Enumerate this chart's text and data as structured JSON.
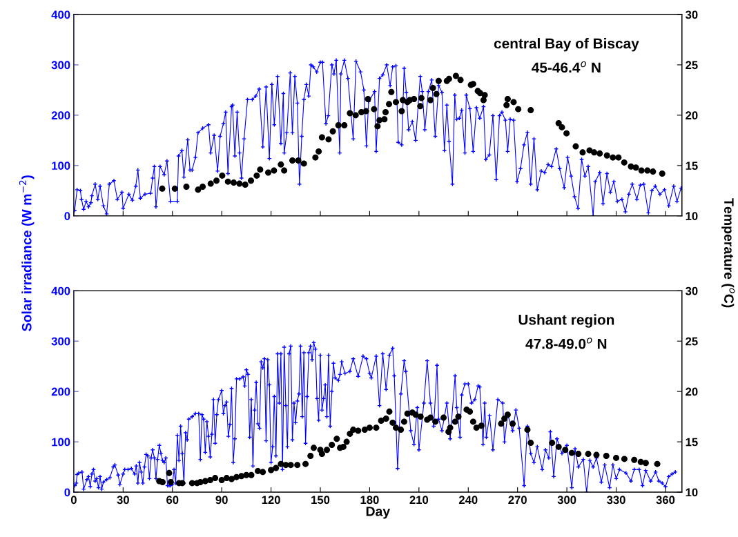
{
  "chart_data": [
    {
      "type": "line",
      "tick_labels": "y",
      "ylabel": "Solar irradiance (W m$^{−2}$)",
      "y2label": "Temperature ($^{o}$C)",
      "annotations": [
        "central Bay of Biscay",
        "45-46.4$^{o}$ N"
      ],
      "xlim": [
        0,
        370
      ],
      "xticks": [
        0,
        30,
        60,
        90,
        120,
        150,
        180,
        210,
        240,
        270,
        300,
        330,
        360
      ],
      "ylim": [
        0,
        400
      ],
      "yticks": [
        0,
        100,
        200,
        300,
        400
      ],
      "y2lim": [
        10,
        30
      ],
      "y2ticks": [
        10,
        15,
        20,
        25,
        30
      ],
      "series": [
        {
          "color": "#0000ff",
          "marker": "cross",
          "x": [
            0.5,
            2,
            4,
            4.7,
            6,
            7.5,
            9,
            10.4,
            11,
            13,
            14.6,
            16,
            18,
            20,
            21.6,
            24.4,
            26.5,
            29.3,
            30,
            33.5,
            35.6,
            37.7,
            39,
            40.5,
            43.3,
            46.8,
            48,
            49,
            50,
            52.5,
            55,
            56.7,
            58.8,
            63,
            63.7,
            65.8,
            67,
            69.3,
            70.7,
            72,
            74,
            75.6,
            78.4,
            82,
            83.3,
            85.4,
            87.5,
            89,
            91,
            92.4,
            93.8,
            96,
            96.6,
            98,
            99.4,
            100.8,
            102,
            103.6,
            105.7,
            108.6,
            110.7,
            112.8,
            115,
            117,
            119,
            120.5,
            122,
            124,
            126,
            127.5,
            128,
            129.6,
            131.7,
            133,
            134.5,
            136,
            137.3,
            138.7,
            140,
            141.5,
            143,
            144.3,
            145.7,
            147.8,
            150,
            151.3,
            153.4,
            154.8,
            157,
            158.3,
            159.7,
            161.8,
            162.5,
            164.6,
            166.8,
            170,
            171.7,
            174.5,
            176.5,
            178,
            179.4,
            183,
            184,
            186,
            188,
            190.4,
            192.5,
            194,
            196,
            197.4,
            199.5,
            201,
            202.3,
            203.7,
            206,
            208,
            210.8,
            212,
            213.6,
            215.7,
            217.8,
            219.9,
            222,
            224,
            225.5,
            227,
            228.3,
            230.4,
            231.8,
            233,
            234.6,
            236,
            238,
            238.8,
            241,
            243,
            245,
            247,
            249.3,
            250.7,
            252.8,
            255,
            257,
            259,
            260.5,
            262.6,
            264,
            265.5,
            267.6,
            269.7,
            271.8,
            273.9,
            276,
            278,
            280,
            282,
            284.4,
            286.5,
            288.6,
            290.7,
            293.5,
            295.6,
            298.4,
            300.5,
            302.6,
            304.7,
            306.8,
            309,
            311,
            313,
            316,
            317.3,
            320,
            322,
            324.4,
            326.5,
            328.6,
            330.7,
            333.5,
            335.6,
            337.7,
            339.8,
            342.6,
            344.7,
            346.8,
            349.6,
            351.7,
            353.8,
            356.6,
            359.4,
            362,
            365,
            367,
            369.5
          ],
          "values": [
            11,
            52,
            50,
            33,
            13,
            29,
            18,
            26,
            40,
            63,
            33,
            59,
            20,
            4,
            63,
            70,
            33,
            47,
            15,
            43,
            31,
            59,
            91,
            35,
            43,
            45,
            75,
            98,
            18,
            98,
            82,
            109,
            29,
            29,
            119,
            130,
            77,
            151,
            91,
            91,
            116,
            165,
            174,
            181,
            125,
            160,
            89,
            158,
            183,
            206,
            84,
            217,
            220,
            119,
            206,
            125,
            75,
            153,
            231,
            231,
            238,
            252,
            137,
            256,
            114,
            261,
            181,
            277,
            144,
            243,
            125,
            165,
            284,
            165,
            277,
            224,
            63,
            158,
            231,
            261,
            238,
            300,
            296,
            286,
            305,
            305,
            183,
            199,
            300,
            282,
            309,
            125,
            282,
            309,
            273,
            153,
            307,
            286,
            250,
            139,
            227,
            247,
            128,
            273,
            280,
            300,
            259,
            296,
            298,
            146,
            141,
            293,
            245,
            171,
            187,
            150,
            277,
            247,
            171,
            247,
            270,
            158,
            259,
            245,
            130,
            220,
            148,
            63,
            240,
            192,
            194,
            210,
            125,
            240,
            213,
            128,
            215,
            194,
            217,
            112,
            121,
            199,
            72,
            199,
            206,
            190,
            128,
            192,
            190,
            68,
            94,
            141,
            166,
            63,
            153,
            52,
            89,
            86,
            102,
            98,
            133,
            94,
            56,
            116,
            79,
            38,
            15,
            112,
            79,
            98,
            0,
            68,
            86,
            24,
            84,
            47,
            68,
            29,
            33,
            8,
            43,
            63,
            33,
            61,
            63,
            6,
            50,
            59,
            43,
            52,
            20,
            59,
            29,
            55
          ]
        },
        {
          "type": "scatter",
          "axis": "y2",
          "color": "#000000",
          "marker": "circle",
          "x": [
            53.8,
            61.5,
            68.5,
            75.6,
            78.4,
            83.3,
            86.8,
            90.3,
            93.8,
            97.3,
            100.8,
            104.3,
            107.8,
            111.3,
            113.4,
            118.3,
            121.8,
            126,
            128,
            133,
            136.6,
            140,
            147,
            149,
            151,
            155,
            157.6,
            161,
            164.6,
            168,
            171.5,
            175,
            177.8,
            179,
            182.7,
            184.8,
            186,
            189,
            189.7,
            191.8,
            193.2,
            196,
            199.5,
            200.2,
            203,
            204.4,
            207,
            210.8,
            211.5,
            217,
            218.5,
            220.6,
            222,
            227,
            228.3,
            232.5,
            235.3,
            241.6,
            243,
            245.8,
            247.2,
            249.3,
            250,
            263.3,
            264,
            267.6,
            270.4,
            278,
            295,
            297,
            299.8,
            305.4,
            309.6,
            313.8,
            316.6,
            320,
            324.4,
            328,
            331.4,
            334.9,
            339,
            342,
            345.4,
            349,
            352.4,
            358
          ],
          "values": [
            12.7,
            12.7,
            12.9,
            12.6,
            12.9,
            13.2,
            13.5,
            14.0,
            13.4,
            13.3,
            13.2,
            13.1,
            13.5,
            14.0,
            14.6,
            14.3,
            14.5,
            15.1,
            14.5,
            15.5,
            15.5,
            15.2,
            15.8,
            16.4,
            17.8,
            17.6,
            18.4,
            19.0,
            19.0,
            20.2,
            20.0,
            20.3,
            20.4,
            21.6,
            20.6,
            18.9,
            19.5,
            19.6,
            20.3,
            21.1,
            22.3,
            21.3,
            20.4,
            21.5,
            21.3,
            21.5,
            21.6,
            20.9,
            21.7,
            21.5,
            22.7,
            22.1,
            23.4,
            23.4,
            23.6,
            23.9,
            23.5,
            23.0,
            23.1,
            22.4,
            22.2,
            21.5,
            22.0,
            21.0,
            21.6,
            21.3,
            20.6,
            20.5,
            19.2,
            18.8,
            18.2,
            16.9,
            16.3,
            16.5,
            16.3,
            16.2,
            16.0,
            15.8,
            15.8,
            15.3,
            14.9,
            14.8,
            14.5,
            14.5,
            14.4,
            14.2
          ]
        }
      ]
    },
    {
      "type": "line",
      "xlabel": "Day",
      "annotations": [
        "Ushant region",
        "47.8-49.0$^{o}$ N"
      ],
      "xlim": [
        0,
        370
      ],
      "xticks": [
        0,
        30,
        60,
        90,
        120,
        150,
        180,
        210,
        240,
        270,
        300,
        330,
        360
      ],
      "ylim": [
        0,
        400
      ],
      "yticks": [
        0,
        100,
        200,
        300,
        400
      ],
      "y2lim": [
        10,
        30
      ],
      "y2ticks": [
        10,
        15,
        20,
        25,
        30
      ],
      "series": [
        {
          "color": "#0000ff",
          "marker": "cross",
          "x": [
            0.6,
            1.5,
            2,
            3,
            5,
            6,
            8,
            9,
            10,
            11,
            12,
            13,
            14,
            15,
            16,
            17,
            18,
            20,
            22,
            24,
            25,
            27,
            28,
            30,
            31,
            33,
            35,
            37,
            38,
            39,
            40,
            41,
            42,
            43,
            44,
            45,
            46,
            47,
            48,
            49,
            50,
            51,
            52,
            53,
            54,
            55,
            56,
            57,
            58,
            59,
            60,
            61,
            62,
            63,
            64,
            65,
            66,
            67,
            68,
            69,
            70,
            72,
            74,
            76,
            77,
            78,
            79,
            80,
            81,
            82,
            83,
            84,
            85,
            86,
            87,
            88,
            90,
            91,
            92,
            93,
            94,
            95,
            96,
            97,
            98,
            99,
            101,
            103,
            104,
            105,
            106,
            107,
            108,
            109,
            110,
            111,
            112,
            113,
            114,
            115,
            116,
            117,
            118,
            119,
            120,
            121,
            122,
            123,
            124,
            125,
            126,
            127,
            128,
            129,
            130,
            131,
            132,
            133,
            134,
            135,
            136,
            137,
            138,
            139,
            140,
            141,
            142,
            143,
            144,
            145,
            146,
            147,
            148,
            149,
            150,
            151,
            152,
            153,
            154,
            155,
            156,
            157,
            158,
            159,
            161,
            162,
            163,
            165,
            168,
            170,
            173,
            176,
            178,
            180,
            181,
            184,
            186,
            188,
            190,
            192,
            194,
            195,
            197,
            199,
            201,
            202,
            205,
            207,
            209,
            210,
            213,
            215,
            217,
            219,
            221,
            222,
            224,
            227,
            229,
            232,
            233,
            235,
            236,
            238,
            240,
            242,
            244,
            246,
            247,
            249,
            250,
            251,
            253,
            255,
            258,
            261,
            262,
            264,
            267,
            269,
            271,
            274,
            276,
            278,
            280,
            282,
            285,
            287,
            289,
            290,
            292,
            294,
            297,
            300,
            303,
            305,
            307,
            310,
            312,
            314,
            316,
            318,
            321,
            323,
            326,
            328,
            330,
            332,
            336,
            339,
            341,
            344,
            346,
            348,
            351,
            354,
            356,
            358,
            360,
            362,
            364,
            366
          ],
          "values": [
            13,
            18,
            35,
            38,
            40,
            6,
            25,
            31,
            11,
            36,
            45,
            22,
            27,
            9,
            31,
            6,
            20,
            25,
            29,
            50,
            54,
            34,
            15,
            36,
            45,
            45,
            47,
            36,
            52,
            18,
            59,
            40,
            18,
            50,
            75,
            72,
            27,
            68,
            84,
            68,
            27,
            65,
            93,
            77,
            63,
            59,
            68,
            13,
            13,
            13,
            15,
            45,
            18,
            113,
            63,
            131,
            77,
            18,
            118,
            104,
            145,
            150,
            156,
            156,
            65,
            154,
            145,
            79,
            140,
            111,
            70,
            115,
            184,
            97,
            154,
            184,
            202,
            156,
            172,
            179,
            111,
            134,
            206,
            59,
            106,
            225,
            225,
            229,
            211,
            243,
            234,
            109,
            184,
            52,
            163,
            218,
            136,
            127,
            259,
            247,
            265,
            102,
            263,
            213,
            59,
            90,
            190,
            72,
            275,
            177,
            275,
            45,
            288,
            172,
            90,
            275,
            290,
            104,
            177,
            138,
            181,
            195,
            290,
            150,
            277,
            97,
            190,
            277,
            290,
            263,
            297,
            284,
            186,
            143,
            272,
            163,
            186,
            213,
            150,
            272,
            131,
            200,
            256,
            227,
            222,
            234,
            259,
            236,
            240,
            265,
            230,
            270,
            265,
            236,
            227,
            270,
            172,
            275,
            204,
            272,
            286,
            231,
            47,
            195,
            261,
            240,
            122,
            95,
            168,
            84,
            177,
            261,
            177,
            131,
            252,
            145,
            122,
            177,
            106,
            231,
            168,
            109,
            193,
            215,
            215,
            177,
            184,
            211,
            209,
            95,
            177,
            109,
            152,
            84,
            184,
            177,
            100,
            154,
            122,
            163,
            127,
            13,
            131,
            77,
            59,
            90,
            45,
            84,
            68,
            120,
            31,
            106,
            77,
            93,
            9,
            86,
            50,
            65,
            0,
            63,
            50,
            68,
            20,
            54,
            9,
            54,
            27,
            45,
            38,
            22,
            45,
            45,
            13,
            43,
            22,
            40,
            22,
            18,
            11,
            31,
            36,
            40
          ]
        },
        {
          "type": "scatter",
          "axis": "y2",
          "color": "#000000",
          "marker": "circle",
          "x": [
            52,
            54,
            58,
            59,
            64,
            66,
            72,
            75,
            77,
            80,
            83,
            86,
            90,
            93,
            96,
            99,
            102,
            105,
            108,
            112,
            115,
            120,
            123,
            126,
            129,
            132,
            136,
            141,
            144,
            146,
            150,
            151,
            154,
            157,
            160,
            162,
            164,
            166,
            168,
            170,
            173,
            177,
            180,
            184,
            187,
            190,
            192,
            194,
            196,
            199,
            201,
            203,
            206,
            208,
            211,
            215,
            217,
            220,
            225,
            228,
            229,
            232,
            234,
            239,
            241,
            243,
            245,
            248,
            260,
            262,
            264,
            267,
            276,
            278,
            291,
            295,
            299,
            303,
            307,
            313,
            318,
            324,
            330,
            335,
            341,
            345,
            348,
            355
          ],
          "values": [
            11.1,
            11.0,
            11.9,
            11.0,
            10.9,
            10.9,
            10.9,
            10.9,
            11.0,
            11.1,
            11.2,
            11.4,
            11.2,
            11.4,
            11.3,
            11.5,
            11.6,
            11.7,
            11.7,
            12.1,
            12.0,
            12.2,
            12.4,
            12.8,
            12.7,
            12.7,
            12.7,
            12.8,
            13.6,
            14.4,
            14.2,
            13.8,
            14.2,
            14.7,
            15.3,
            14.4,
            14.5,
            15.0,
            15.8,
            16.2,
            16.1,
            16.2,
            16.4,
            16.4,
            17.1,
            17.3,
            18.0,
            16.9,
            16.4,
            16.2,
            17.0,
            17.8,
            17.9,
            17.7,
            17.5,
            17.2,
            17.4,
            17.0,
            17.4,
            16.0,
            16.4,
            17.0,
            17.5,
            18.2,
            18.0,
            17.0,
            16.4,
            16.6,
            16.8,
            17.3,
            17.7,
            16.8,
            16.2,
            14.9,
            14.9,
            14.5,
            14.2,
            13.9,
            13.8,
            13.8,
            13.7,
            13.6,
            13.4,
            13.3,
            13.2,
            13.0,
            12.9,
            12.8
          ]
        }
      ]
    }
  ]
}
